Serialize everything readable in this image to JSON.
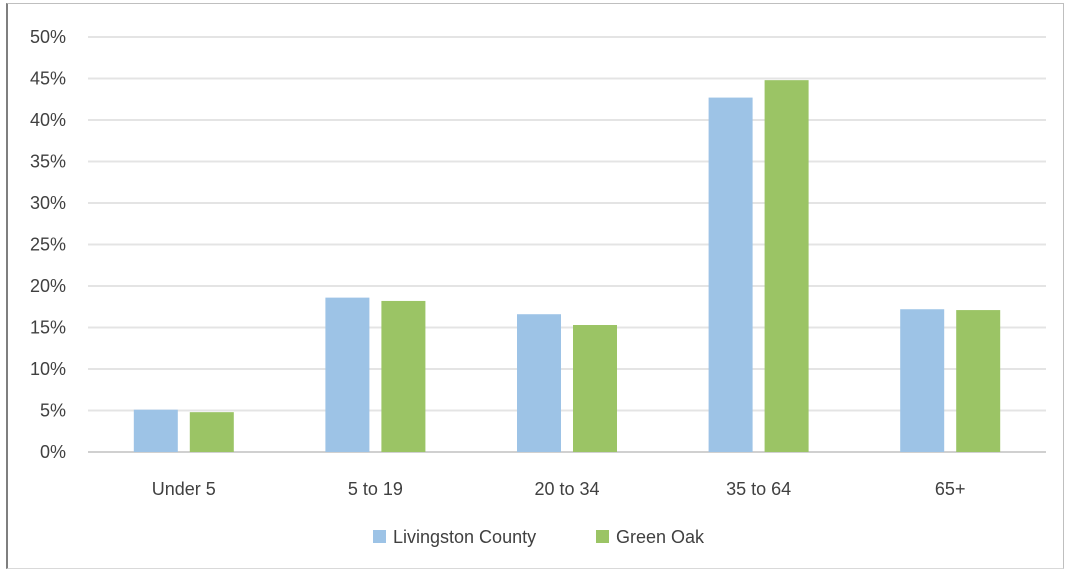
{
  "chart_data": {
    "type": "bar",
    "title": "",
    "xlabel": "",
    "ylabel": "",
    "categories": [
      "Under 5",
      "5 to 19",
      "20 to 34",
      "35 to 64",
      "65+"
    ],
    "series": [
      {
        "name": "Livingston County",
        "color": "#9dc3e6",
        "values": [
          5.1,
          18.6,
          16.6,
          42.7,
          17.2
        ]
      },
      {
        "name": "Green Oak",
        "color": "#9bc465",
        "values": [
          4.8,
          18.2,
          15.3,
          44.8,
          17.1
        ]
      }
    ],
    "ylim": [
      0,
      50
    ],
    "yticks": [
      "0%",
      "5%",
      "10%",
      "15%",
      "20%",
      "25%",
      "30%",
      "35%",
      "40%",
      "45%",
      "50%"
    ],
    "grid": true,
    "legend_position": "bottom"
  }
}
